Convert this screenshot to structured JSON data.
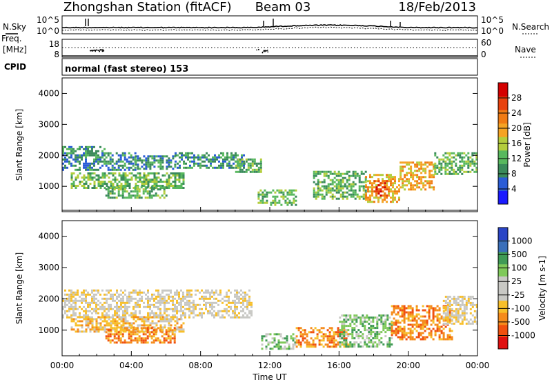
{
  "header": {
    "title": "Zhongshan Station (fitACF)",
    "beam": "Beam 03",
    "date": "18/Feb/2013"
  },
  "nsky_panel": {
    "left_label": "N.Sky",
    "right_label": "N.Search",
    "left_ticks": [
      "10^5",
      "10^0"
    ],
    "right_ticks": [
      "10^5",
      "10^0"
    ]
  },
  "freq_panel": {
    "left_label_1": "Freq.",
    "left_label_2": "[MHz]",
    "right_label": "Nave",
    "left_ticks": [
      "18",
      "8"
    ],
    "right_ticks": [
      "60",
      "0"
    ]
  },
  "cpid_panel": {
    "label": "CPID",
    "text": "normal (fast stereo) 153"
  },
  "colors": {
    "power": [
      "#1a1aff",
      "#2a5cd6",
      "#3a8a5a",
      "#58b85e",
      "#b4cd3c",
      "#f5a323",
      "#f07b13",
      "#e8420e",
      "#d40000"
    ],
    "velocity": [
      "#e01010",
      "#f0500f",
      "#f58b1c",
      "#f7bf2a",
      "#c8c8c4",
      "#c8c8c4",
      "#7fc95a",
      "#3f9a55",
      "#3a6fba",
      "#2a45c6"
    ]
  },
  "chart_data": [
    {
      "type": "heatmap",
      "name": "power",
      "xlabel": "",
      "ylabel": "Slant Range [km]",
      "xlim": [
        0,
        24
      ],
      "ylim": [
        180,
        4500
      ],
      "yticks": [
        1000,
        2000,
        3000,
        4000
      ],
      "yticklabels": [
        "1000",
        "2000",
        "3000",
        "4000"
      ],
      "colorbar": {
        "label": "Power [dB]",
        "tick_labels": [
          "4",
          "8",
          "12",
          "16",
          "20",
          "24",
          "28"
        ],
        "range": [
          0,
          30
        ]
      },
      "regions": [
        {
          "x": [
            0.0,
            2.5
          ],
          "y": [
            1500,
            2300
          ],
          "level": 7
        },
        {
          "x": [
            2.5,
            4.2
          ],
          "y": [
            1500,
            2100
          ],
          "level": 9
        },
        {
          "x": [
            4.2,
            6.5
          ],
          "y": [
            1550,
            2000
          ],
          "level": 8
        },
        {
          "x": [
            6.5,
            10.5
          ],
          "y": [
            1600,
            2100
          ],
          "level": 9
        },
        {
          "x": [
            10.0,
            11.5
          ],
          "y": [
            1450,
            1900
          ],
          "level": 13
        },
        {
          "x": [
            0.5,
            7.0
          ],
          "y": [
            950,
            1450
          ],
          "level": 10
        },
        {
          "x": [
            2.5,
            6.0
          ],
          "y": [
            600,
            1000
          ],
          "level": 11
        },
        {
          "x": [
            11.3,
            13.5
          ],
          "y": [
            400,
            900
          ],
          "level": 10
        },
        {
          "x": [
            14.5,
            17.5
          ],
          "y": [
            600,
            1500
          ],
          "level": 11
        },
        {
          "x": [
            17.5,
            19.5
          ],
          "y": [
            500,
            1400
          ],
          "level": 18
        },
        {
          "x": [
            18.0,
            18.8
          ],
          "y": [
            700,
            1200
          ],
          "level": 26
        },
        {
          "x": [
            19.5,
            21.5
          ],
          "y": [
            900,
            1800
          ],
          "level": 19
        },
        {
          "x": [
            21.5,
            24.0
          ],
          "y": [
            1400,
            2100
          ],
          "level": 12
        }
      ]
    },
    {
      "type": "heatmap",
      "name": "velocity",
      "xlabel": "Time UT",
      "ylabel": "Slant Range [km]",
      "xlim": [
        0,
        24
      ],
      "ylim": [
        180,
        4500
      ],
      "xticks": [
        0,
        4,
        8,
        12,
        16,
        20,
        24
      ],
      "xticklabels": [
        "00:00",
        "04:00",
        "08:00",
        "12:00",
        "16:00",
        "20:00",
        "00:00"
      ],
      "yticks": [
        1000,
        2000,
        3000,
        4000
      ],
      "yticklabels": [
        "1000",
        "2000",
        "3000",
        "4000"
      ],
      "colorbar": {
        "label": "Velocity [m s-1]",
        "tick_labels": [
          "-1000",
          "-500",
          "-100",
          "-25",
          "25",
          "100",
          "500",
          "1000"
        ],
        "range": [
          -1500,
          1500
        ]
      },
      "regions": [
        {
          "x": [
            0.0,
            11.0
          ],
          "y": [
            1400,
            2300
          ],
          "level": 0
        },
        {
          "x": [
            0.5,
            7.0
          ],
          "y": [
            950,
            1450
          ],
          "level": -40
        },
        {
          "x": [
            2.5,
            6.5
          ],
          "y": [
            600,
            1100
          ],
          "level": -150
        },
        {
          "x": [
            11.5,
            13.5
          ],
          "y": [
            400,
            900
          ],
          "level": 150
        },
        {
          "x": [
            13.5,
            16.5
          ],
          "y": [
            500,
            1100
          ],
          "level": -400
        },
        {
          "x": [
            16.0,
            19.0
          ],
          "y": [
            500,
            1500
          ],
          "level": 150
        },
        {
          "x": [
            19.0,
            22.5
          ],
          "y": [
            700,
            1800
          ],
          "level": -300
        },
        {
          "x": [
            22.0,
            24.0
          ],
          "y": [
            1200,
            2100
          ],
          "level": 0
        }
      ]
    }
  ]
}
